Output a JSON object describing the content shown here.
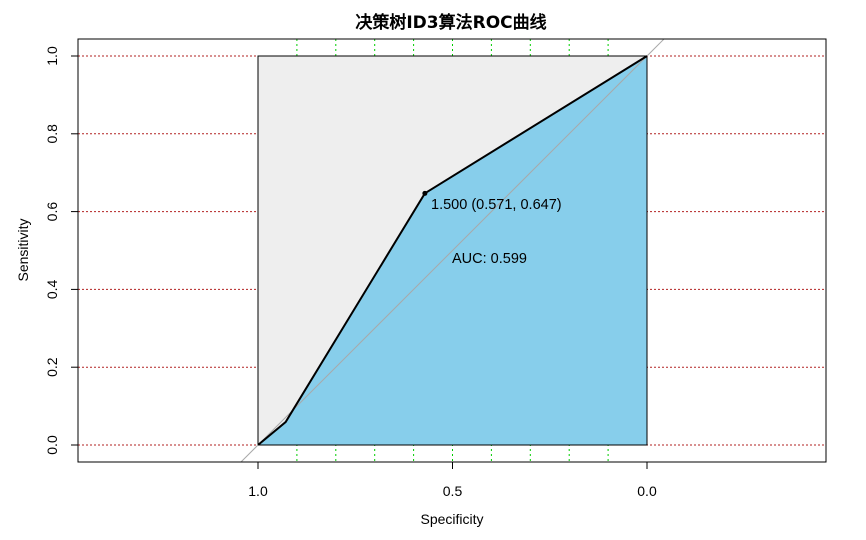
{
  "chart_data": {
    "type": "area",
    "title": "决策树ID3算法ROC曲线",
    "xlabel": "Specificity",
    "ylabel": "Sensitivity",
    "xlim": [
      1.0,
      0.0
    ],
    "ylim": [
      0.0,
      1.0
    ],
    "x_reversed": true,
    "x_ticks": [
      1.0,
      0.5,
      0.0
    ],
    "x_tick_labels": [
      "1.0",
      "0.5",
      "0.0"
    ],
    "y_ticks": [
      0.0,
      0.2,
      0.4,
      0.6,
      0.8,
      1.0
    ],
    "y_tick_labels": [
      "0.0",
      "0.2",
      "0.4",
      "0.6",
      "0.8",
      "1.0"
    ],
    "grid": true,
    "vertical_grid_specificity": [
      0.9,
      0.8,
      0.7,
      0.6,
      0.5,
      0.4,
      0.3,
      0.2,
      0.1
    ],
    "series": [
      {
        "specificity": [
          1.0,
          0.929,
          0.571,
          0.0
        ],
        "sensitivity": [
          0.0,
          0.059,
          0.647,
          1.0
        ]
      }
    ],
    "best_threshold": {
      "specificity": 0.571,
      "sensitivity": 0.647,
      "label": "1.500 (0.571, 0.647)"
    },
    "auc_label": "AUC: 0.599",
    "colors": {
      "auc_fill": "#87ceeb",
      "max_auc_fill": "#eeeeee",
      "horizontal_grid": "#b22222",
      "vertical_grid": "#00cc00",
      "diagonal": "#a9a9a9",
      "curve": "#000000"
    }
  }
}
